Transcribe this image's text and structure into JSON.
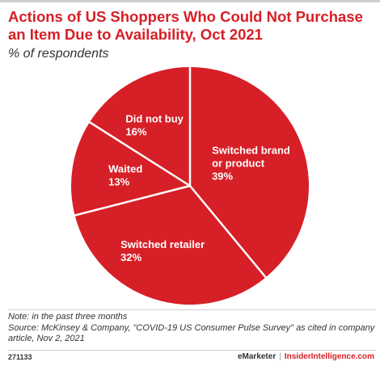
{
  "header": {
    "title": "Actions of US Shoppers Who Could Not Purchase an Item Due to Availability, Oct 2021",
    "subtitle": "% of respondents"
  },
  "chart_data": {
    "type": "pie",
    "title": "Actions of US Shoppers Who Could Not Purchase an Item Due to Availability, Oct 2021",
    "subtitle": "% of respondents",
    "unit": "%",
    "slices": [
      {
        "label": "Switched brand or product",
        "label_lines": [
          "Switched brand",
          "or product"
        ],
        "value": 39,
        "value_label": "39%"
      },
      {
        "label": "Switched retailer",
        "label_lines": [
          "Switched retailer"
        ],
        "value": 32,
        "value_label": "32%"
      },
      {
        "label": "Waited",
        "label_lines": [
          "Waited"
        ],
        "value": 13,
        "value_label": "13%"
      },
      {
        "label": "Did not buy",
        "label_lines": [
          "Did not buy"
        ],
        "value": 16,
        "value_label": "16%"
      }
    ],
    "colors": {
      "slice": "#d61f26",
      "separator": "#ffffff"
    }
  },
  "notes": {
    "note": "Note: in the past three months",
    "source": "Source: McKinsey & Company, \"COVID-19 US Consumer Pulse Survey\" as cited in company article, Nov 2, 2021"
  },
  "footer": {
    "chart_id": "271133",
    "brand": "eMarketer",
    "separator": "|",
    "site": "InsiderIntelligence.com"
  }
}
